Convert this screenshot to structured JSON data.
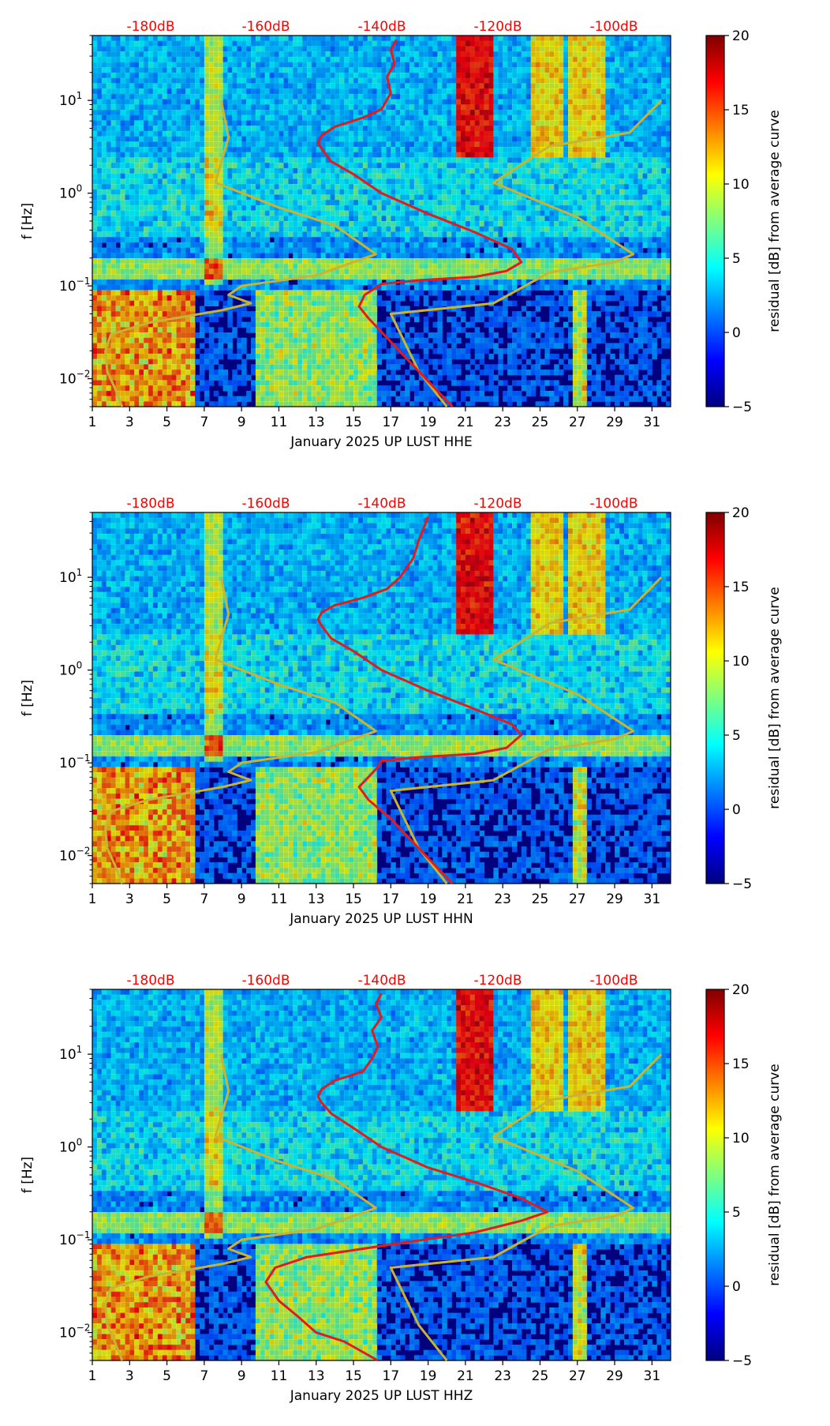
{
  "colors": {
    "colormap": [
      "#00007f",
      "#0000ff",
      "#007fff",
      "#00ffff",
      "#7fff7f",
      "#ffff00",
      "#ff7f00",
      "#ff0000",
      "#7f0000"
    ],
    "background": "#00007f",
    "red_curve": "#e41a1c",
    "yellow_curve": "#c8b432",
    "db_label": "#ff0000"
  },
  "chart_data": [
    {
      "type": "heatmap",
      "channel": "HHE",
      "xlabel": "January 2025 UP LUST  HHE",
      "ylabel": "f [Hz]",
      "x_ticks": [
        "1",
        "3",
        "5",
        "7",
        "9",
        "11",
        "13",
        "15",
        "17",
        "19",
        "21",
        "23",
        "25",
        "27",
        "29",
        "31"
      ],
      "xlim": [
        1,
        32
      ],
      "y_scale": "log",
      "ylim": [
        0.005,
        50
      ],
      "y_ticks": [
        {
          "base": "10",
          "exp": "−2"
        },
        {
          "base": "10",
          "exp": "−1"
        },
        {
          "base": "10",
          "exp": "0"
        },
        {
          "base": "10",
          "exp": "1"
        }
      ],
      "top_db_labels": [
        "-180dB",
        "-160dB",
        "-140dB",
        "-120dB",
        "-100dB"
      ],
      "colorbar": {
        "label": "residual [dB] from average curve",
        "range": [
          -5,
          20
        ],
        "ticks": [
          "20",
          "15",
          "10",
          "5",
          "0",
          "−5"
        ]
      },
      "red_curve": {
        "name": "noise PSD",
        "points": [
          [
            20.3,
            0.005
          ],
          [
            18.5,
            0.012
          ],
          [
            17.0,
            0.025
          ],
          [
            15.8,
            0.045
          ],
          [
            15.3,
            0.06
          ],
          [
            15.6,
            0.08
          ],
          [
            16.5,
            0.105
          ],
          [
            18.5,
            0.115
          ],
          [
            21.5,
            0.125
          ],
          [
            23.2,
            0.145
          ],
          [
            24.0,
            0.18
          ],
          [
            23.5,
            0.25
          ],
          [
            21.5,
            0.38
          ],
          [
            19.0,
            0.6
          ],
          [
            16.5,
            1.0
          ],
          [
            15.0,
            1.6
          ],
          [
            13.8,
            2.2
          ],
          [
            13.3,
            3.0
          ],
          [
            13.1,
            3.5
          ],
          [
            13.3,
            4.2
          ],
          [
            14.0,
            5.2
          ],
          [
            15.5,
            6.5
          ],
          [
            16.5,
            8.0
          ],
          [
            17.0,
            12
          ],
          [
            16.8,
            18
          ],
          [
            17.2,
            25
          ],
          [
            17.0,
            35
          ],
          [
            17.3,
            45
          ]
        ]
      },
      "yellow_curves": [
        {
          "name": "low noise model",
          "points": [
            [
              2.6,
              0.005
            ],
            [
              2.2,
              0.008
            ],
            [
              1.8,
              0.012
            ],
            [
              1.7,
              0.02
            ],
            [
              2.0,
              0.03
            ],
            [
              4.0,
              0.04
            ],
            [
              8.0,
              0.055
            ],
            [
              9.5,
              0.065
            ],
            [
              8.3,
              0.08
            ],
            [
              9.0,
              0.1
            ],
            [
              13.0,
              0.13
            ],
            [
              16.2,
              0.22
            ],
            [
              14.0,
              0.45
            ],
            [
              11.0,
              0.7
            ],
            [
              7.6,
              1.3
            ],
            [
              8.3,
              4.0
            ],
            [
              7.9,
              10
            ]
          ]
        },
        {
          "name": "high noise model",
          "points": [
            [
              20.0,
              0.005
            ],
            [
              18.5,
              0.012
            ],
            [
              17.0,
              0.05
            ],
            [
              22.5,
              0.065
            ],
            [
              25.5,
              0.14
            ],
            [
              29.0,
              0.18
            ],
            [
              30.0,
              0.22
            ],
            [
              27.0,
              0.55
            ],
            [
              22.5,
              1.3
            ],
            [
              25.5,
              3.2
            ],
            [
              29.8,
              4.5
            ],
            [
              31.5,
              10
            ]
          ]
        }
      ]
    },
    {
      "type": "heatmap",
      "channel": "HHN",
      "xlabel": "January 2025 UP LUST  HHN",
      "ylabel": "f [Hz]",
      "x_ticks": [
        "1",
        "3",
        "5",
        "7",
        "9",
        "11",
        "13",
        "15",
        "17",
        "19",
        "21",
        "23",
        "25",
        "27",
        "29",
        "31"
      ],
      "xlim": [
        1,
        32
      ],
      "y_scale": "log",
      "ylim": [
        0.005,
        50
      ],
      "y_ticks": [
        {
          "base": "10",
          "exp": "−2"
        },
        {
          "base": "10",
          "exp": "−1"
        },
        {
          "base": "10",
          "exp": "0"
        },
        {
          "base": "10",
          "exp": "1"
        }
      ],
      "top_db_labels": [
        "-180dB",
        "-160dB",
        "-140dB",
        "-120dB",
        "-100dB"
      ],
      "colorbar": {
        "label": "residual [dB] from average curve",
        "range": [
          -5,
          20
        ],
        "ticks": [
          "20",
          "15",
          "10",
          "5",
          "0",
          "−5"
        ]
      },
      "red_curve": {
        "name": "noise PSD",
        "points": [
          [
            20.3,
            0.005
          ],
          [
            18.5,
            0.012
          ],
          [
            17.0,
            0.025
          ],
          [
            15.8,
            0.04
          ],
          [
            15.3,
            0.055
          ],
          [
            15.8,
            0.07
          ],
          [
            16.3,
            0.09
          ],
          [
            16.5,
            0.105
          ],
          [
            18.5,
            0.115
          ],
          [
            21.5,
            0.125
          ],
          [
            23.2,
            0.145
          ],
          [
            24.0,
            0.2
          ],
          [
            23.5,
            0.26
          ],
          [
            21.5,
            0.38
          ],
          [
            19.0,
            0.6
          ],
          [
            16.5,
            1.0
          ],
          [
            15.0,
            1.6
          ],
          [
            13.8,
            2.2
          ],
          [
            13.3,
            3.0
          ],
          [
            13.1,
            3.5
          ],
          [
            13.3,
            4.2
          ],
          [
            14.0,
            5.0
          ],
          [
            15.5,
            6.0
          ],
          [
            16.8,
            7.5
          ],
          [
            17.5,
            10
          ],
          [
            18.2,
            16
          ],
          [
            18.5,
            25
          ],
          [
            19.0,
            45
          ]
        ]
      },
      "yellow_curves": [
        {
          "name": "low noise model",
          "points": [
            [
              2.6,
              0.005
            ],
            [
              2.2,
              0.008
            ],
            [
              1.8,
              0.012
            ],
            [
              1.7,
              0.02
            ],
            [
              2.0,
              0.03
            ],
            [
              4.0,
              0.04
            ],
            [
              8.0,
              0.055
            ],
            [
              9.5,
              0.065
            ],
            [
              8.3,
              0.08
            ],
            [
              9.0,
              0.1
            ],
            [
              13.0,
              0.13
            ],
            [
              16.2,
              0.22
            ],
            [
              14.0,
              0.45
            ],
            [
              11.0,
              0.7
            ],
            [
              7.6,
              1.3
            ],
            [
              8.3,
              4.0
            ],
            [
              7.9,
              10
            ]
          ]
        },
        {
          "name": "high noise model",
          "points": [
            [
              20.0,
              0.005
            ],
            [
              18.5,
              0.012
            ],
            [
              17.0,
              0.05
            ],
            [
              22.5,
              0.065
            ],
            [
              25.5,
              0.14
            ],
            [
              29.0,
              0.18
            ],
            [
              30.0,
              0.22
            ],
            [
              27.0,
              0.55
            ],
            [
              22.5,
              1.3
            ],
            [
              25.5,
              3.2
            ],
            [
              29.8,
              4.5
            ],
            [
              31.5,
              10
            ]
          ]
        }
      ]
    },
    {
      "type": "heatmap",
      "channel": "HHZ",
      "xlabel": "January 2025 UP LUST  HHZ",
      "ylabel": "f [Hz]",
      "x_ticks": [
        "1",
        "3",
        "5",
        "7",
        "9",
        "11",
        "13",
        "15",
        "17",
        "19",
        "21",
        "23",
        "25",
        "27",
        "29",
        "31"
      ],
      "xlim": [
        1,
        32
      ],
      "y_scale": "log",
      "ylim": [
        0.005,
        50
      ],
      "y_ticks": [
        {
          "base": "10",
          "exp": "−2"
        },
        {
          "base": "10",
          "exp": "−1"
        },
        {
          "base": "10",
          "exp": "0"
        },
        {
          "base": "10",
          "exp": "1"
        }
      ],
      "top_db_labels": [
        "-180dB",
        "-160dB",
        "-140dB",
        "-120dB",
        "-100dB"
      ],
      "colorbar": {
        "label": "residual [dB] from average curve",
        "range": [
          -5,
          20
        ],
        "ticks": [
          "20",
          "15",
          "10",
          "5",
          "0",
          "−5"
        ]
      },
      "red_curve": {
        "name": "noise PSD",
        "points": [
          [
            16.3,
            0.005
          ],
          [
            14.5,
            0.008
          ],
          [
            13.0,
            0.01
          ],
          [
            12.0,
            0.015
          ],
          [
            11.0,
            0.022
          ],
          [
            10.3,
            0.035
          ],
          [
            10.8,
            0.05
          ],
          [
            12.5,
            0.065
          ],
          [
            15.5,
            0.08
          ],
          [
            18.0,
            0.095
          ],
          [
            21.5,
            0.12
          ],
          [
            24.0,
            0.16
          ],
          [
            25.4,
            0.2
          ],
          [
            24.0,
            0.28
          ],
          [
            21.5,
            0.42
          ],
          [
            19.0,
            0.6
          ],
          [
            16.5,
            1.0
          ],
          [
            15.0,
            1.6
          ],
          [
            13.8,
            2.3
          ],
          [
            13.3,
            3.0
          ],
          [
            13.1,
            3.5
          ],
          [
            13.3,
            4.2
          ],
          [
            14.0,
            5.2
          ],
          [
            15.5,
            6.5
          ],
          [
            16.0,
            9.0
          ],
          [
            16.3,
            12
          ],
          [
            16.0,
            18
          ],
          [
            16.5,
            25
          ],
          [
            16.2,
            35
          ],
          [
            16.5,
            45
          ]
        ]
      },
      "yellow_curves": [
        {
          "name": "low noise model",
          "points": [
            [
              2.6,
              0.005
            ],
            [
              2.2,
              0.008
            ],
            [
              1.8,
              0.012
            ],
            [
              1.7,
              0.02
            ],
            [
              2.0,
              0.03
            ],
            [
              4.0,
              0.04
            ],
            [
              8.0,
              0.055
            ],
            [
              9.5,
              0.065
            ],
            [
              8.3,
              0.08
            ],
            [
              9.0,
              0.1
            ],
            [
              13.0,
              0.13
            ],
            [
              16.2,
              0.22
            ],
            [
              14.0,
              0.45
            ],
            [
              11.0,
              0.7
            ],
            [
              7.6,
              1.3
            ],
            [
              8.3,
              4.0
            ],
            [
              7.9,
              10
            ]
          ]
        },
        {
          "name": "high noise model",
          "points": [
            [
              20.0,
              0.005
            ],
            [
              18.5,
              0.012
            ],
            [
              17.0,
              0.05
            ],
            [
              22.5,
              0.065
            ],
            [
              25.5,
              0.14
            ],
            [
              29.0,
              0.18
            ],
            [
              30.0,
              0.22
            ],
            [
              27.0,
              0.55
            ],
            [
              22.5,
              1.3
            ],
            [
              25.5,
              3.2
            ],
            [
              29.8,
              4.5
            ],
            [
              31.5,
              10
            ]
          ]
        }
      ]
    }
  ]
}
